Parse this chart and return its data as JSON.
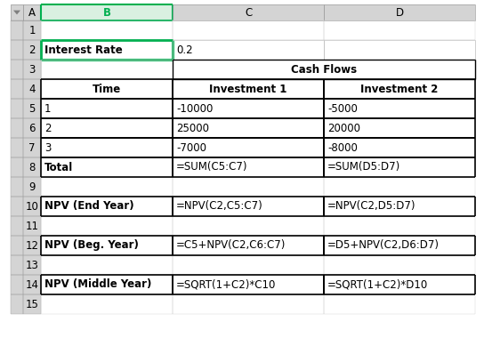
{
  "figsize": [
    5.44,
    3.8
  ],
  "dpi": 100,
  "col_labels": [
    "A",
    "B",
    "C",
    "D"
  ],
  "num_rows": 15,
  "font_size": 8.5,
  "black": "#000000",
  "gray_bg": "#d4d4d4",
  "white": "#ffffff",
  "green": "#00b050",
  "green_light": "#e2efda",
  "rows": {
    "1": {
      "cells": {}
    },
    "2": {
      "cells": {
        "B": {
          "text": "Interest Rate",
          "bold": true,
          "align": "left",
          "border": "green"
        },
        "C": {
          "text": "0.2",
          "bold": false,
          "align": "left"
        },
        "D": {
          "text": "",
          "bold": false,
          "align": "left"
        }
      }
    },
    "3": {
      "cells": {
        "B": {
          "text": "",
          "bold": false,
          "align": "left"
        },
        "CD_merge": {
          "text": "Cash Flows",
          "bold": true,
          "align": "center"
        }
      }
    },
    "4": {
      "cells": {
        "B": {
          "text": "Time",
          "bold": true,
          "align": "center",
          "border": "black"
        },
        "C": {
          "text": "Investment 1",
          "bold": true,
          "align": "center",
          "border": "black"
        },
        "D": {
          "text": "Investment 2",
          "bold": true,
          "align": "center",
          "border": "black"
        }
      }
    },
    "5": {
      "cells": {
        "B": {
          "text": "1",
          "bold": false,
          "align": "left",
          "border": "black"
        },
        "C": {
          "text": "-10000",
          "bold": false,
          "align": "left",
          "border": "black"
        },
        "D": {
          "text": "-5000",
          "bold": false,
          "align": "left",
          "border": "black"
        }
      }
    },
    "6": {
      "cells": {
        "B": {
          "text": "2",
          "bold": false,
          "align": "left",
          "border": "black"
        },
        "C": {
          "text": "25000",
          "bold": false,
          "align": "left",
          "border": "black"
        },
        "D": {
          "text": "20000",
          "bold": false,
          "align": "left",
          "border": "black"
        }
      }
    },
    "7": {
      "cells": {
        "B": {
          "text": "3",
          "bold": false,
          "align": "left",
          "border": "black"
        },
        "C": {
          "text": "-7000",
          "bold": false,
          "align": "left",
          "border": "black"
        },
        "D": {
          "text": "-8000",
          "bold": false,
          "align": "left",
          "border": "black"
        }
      }
    },
    "8": {
      "cells": {
        "B": {
          "text": "Total",
          "bold": true,
          "align": "left",
          "border": "black"
        },
        "C": {
          "text": "=SUM(C5:C7)",
          "bold": false,
          "align": "left",
          "border": "black"
        },
        "D": {
          "text": "=SUM(D5:D7)",
          "bold": false,
          "align": "left",
          "border": "black"
        }
      }
    },
    "9": {
      "cells": {}
    },
    "10": {
      "cells": {
        "B": {
          "text": "NPV (End Year)",
          "bold": true,
          "align": "left",
          "border": "black"
        },
        "C": {
          "text": "=NPV(C2,C5:C7)",
          "bold": false,
          "align": "left",
          "border": "black"
        },
        "D": {
          "text": "=NPV(C2,D5:D7)",
          "bold": false,
          "align": "left",
          "border": "black"
        }
      }
    },
    "11": {
      "cells": {}
    },
    "12": {
      "cells": {
        "B": {
          "text": "NPV (Beg. Year)",
          "bold": true,
          "align": "left",
          "border": "black"
        },
        "C": {
          "text": "=C5+NPV(C2,C6:C7)",
          "bold": false,
          "align": "left",
          "border": "black"
        },
        "D": {
          "text": "=D5+NPV(C2,D6:D7)",
          "bold": false,
          "align": "left",
          "border": "black"
        }
      }
    },
    "13": {
      "cells": {}
    },
    "14": {
      "cells": {
        "B": {
          "text": "NPV (Middle Year)",
          "bold": true,
          "align": "left",
          "border": "black"
        },
        "C": {
          "text": "=SQRT(1+C2)*C10",
          "bold": false,
          "align": "left",
          "border": "black"
        },
        "D": {
          "text": "=SQRT(1+C2)*D10",
          "bold": false,
          "align": "left",
          "border": "black"
        }
      }
    },
    "15": {
      "cells": {}
    }
  }
}
